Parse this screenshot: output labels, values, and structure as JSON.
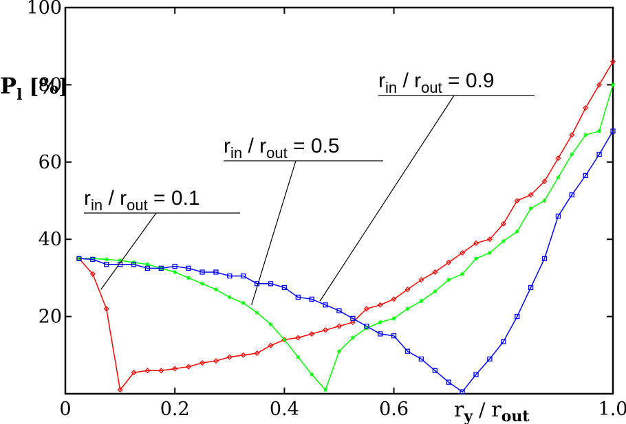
{
  "chart_data": {
    "type": "line",
    "title": "",
    "xlabel": {
      "main": "r",
      "sub_main": "y",
      "sep": " / ",
      "base": "r",
      "sub_base": "out"
    },
    "ylabel": {
      "main": "P",
      "sub": "l",
      "unit": "[%]"
    },
    "xlim": [
      0,
      1
    ],
    "ylim": [
      0,
      100
    ],
    "x_ticks": [
      0,
      0.2,
      0.4,
      0.6,
      1.0
    ],
    "x_tick_labels": [
      "0",
      "0.2",
      "0.4",
      "0.6",
      "1.0"
    ],
    "y_ticks": [
      20,
      40,
      60,
      80,
      100
    ],
    "y_tick_labels": [
      "20",
      "40",
      "60",
      "80",
      "100"
    ],
    "grid": false,
    "series": [
      {
        "name": "r_in / r_out = 0.1",
        "color": "#ff0000",
        "marker": "diamond",
        "x": [
          0.025,
          0.05,
          0.075,
          0.1,
          0.125,
          0.15,
          0.175,
          0.2,
          0.225,
          0.25,
          0.275,
          0.3,
          0.325,
          0.35,
          0.375,
          0.4,
          0.425,
          0.45,
          0.475,
          0.5,
          0.525,
          0.55,
          0.575,
          0.6,
          0.625,
          0.65,
          0.675,
          0.7,
          0.725,
          0.75,
          0.775,
          0.8,
          0.825,
          0.85,
          0.875,
          0.9,
          0.925,
          0.95,
          0.975,
          1.0
        ],
        "y": [
          35,
          31,
          22,
          1,
          5.5,
          6,
          6,
          6.5,
          7,
          8,
          8.5,
          9.5,
          10,
          10.5,
          12.5,
          14,
          14.5,
          15.5,
          16.5,
          17.5,
          18.5,
          22,
          23,
          24.5,
          27,
          29.5,
          31.5,
          34,
          36.5,
          39,
          40,
          44,
          50,
          51.5,
          55,
          61,
          67,
          74,
          80,
          86
        ]
      },
      {
        "name": "r_in / r_out = 0.5",
        "color": "#00ff00",
        "marker": "star",
        "x": [
          0.025,
          0.05,
          0.075,
          0.1,
          0.125,
          0.15,
          0.175,
          0.2,
          0.225,
          0.25,
          0.275,
          0.3,
          0.325,
          0.35,
          0.375,
          0.4,
          0.425,
          0.45,
          0.475,
          0.5,
          0.525,
          0.55,
          0.575,
          0.6,
          0.625,
          0.65,
          0.675,
          0.7,
          0.725,
          0.75,
          0.775,
          0.8,
          0.825,
          0.85,
          0.875,
          0.9,
          0.925,
          0.95,
          0.975,
          1.0
        ],
        "y": [
          35,
          35,
          34.8,
          34.5,
          34,
          33.5,
          32.5,
          31.5,
          30,
          28.5,
          27,
          25,
          23.5,
          21,
          18,
          14,
          9.5,
          5,
          1,
          11,
          14.5,
          17,
          18.5,
          19.5,
          22,
          24,
          26.5,
          29.5,
          31,
          35,
          36.5,
          39.5,
          42,
          48,
          50,
          56,
          62,
          67,
          68,
          80
        ]
      },
      {
        "name": "r_in / r_out = 0.9",
        "color": "#0000ff",
        "marker": "square",
        "x": [
          0.025,
          0.05,
          0.075,
          0.1,
          0.125,
          0.15,
          0.175,
          0.2,
          0.225,
          0.25,
          0.275,
          0.3,
          0.325,
          0.35,
          0.375,
          0.4,
          0.425,
          0.45,
          0.475,
          0.5,
          0.525,
          0.55,
          0.575,
          0.6,
          0.625,
          0.65,
          0.675,
          0.7,
          0.725,
          0.75,
          0.775,
          0.8,
          0.825,
          0.85,
          0.875,
          0.9,
          0.925,
          0.95,
          0.975,
          1.0
        ],
        "y": [
          35,
          34.8,
          33.5,
          33.5,
          33.5,
          32.5,
          32.5,
          33,
          32.5,
          31.5,
          31.5,
          30.5,
          30.5,
          28.5,
          28.5,
          27.5,
          25,
          24.5,
          23,
          21.5,
          19.5,
          17.5,
          15.5,
          15,
          11,
          9,
          6,
          3,
          0.5,
          5,
          9,
          13.5,
          20,
          27.5,
          35,
          46,
          51.5,
          56.5,
          62,
          68
        ]
      }
    ],
    "annotations": [
      {
        "label_main": "r",
        "label_sub1": "in",
        "label_sep": " / r",
        "label_sub2": "out",
        "label_value": " = 0.1",
        "series": 0,
        "pointer_x": 0.065,
        "pointer_y": 27
      },
      {
        "label_main": "r",
        "label_sub1": "in",
        "label_sep": " / r",
        "label_sub2": "out",
        "label_value": " = 0.5",
        "series": 1,
        "pointer_x": 0.34,
        "pointer_y": 23
      },
      {
        "label_main": "r",
        "label_sub1": "in",
        "label_sep": " / r",
        "label_sub2": "out",
        "label_value": " = 0.9",
        "series": 2,
        "pointer_x": 0.465,
        "pointer_y": 24
      }
    ]
  }
}
